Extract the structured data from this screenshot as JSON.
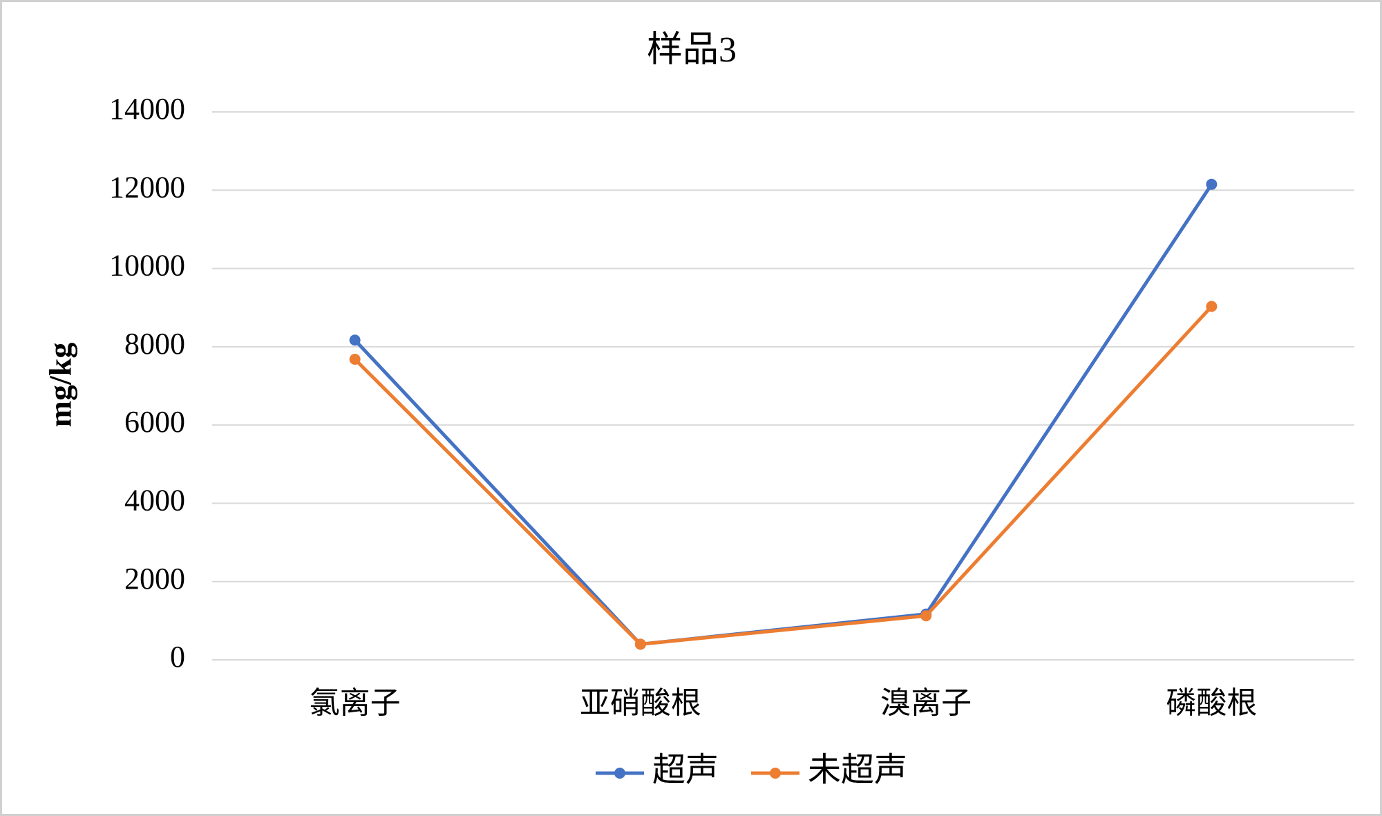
{
  "chart_data": {
    "type": "line",
    "title": "样品3",
    "y_label": "mg/kg",
    "categories": [
      "氯离子",
      "亚硝酸根",
      "溴离子",
      "磷酸根"
    ],
    "series": [
      {
        "name": "超声",
        "color": "#4472c4",
        "values": [
          8170,
          400,
          1170,
          12150
        ]
      },
      {
        "name": "未超声",
        "color": "#ed7d31",
        "values": [
          7680,
          400,
          1125,
          9030
        ]
      }
    ],
    "ylim": [
      0,
      14000
    ],
    "yticks": [
      0,
      2000,
      4000,
      6000,
      8000,
      10000,
      12000,
      14000
    ],
    "grid": true,
    "legend": "bottom"
  }
}
